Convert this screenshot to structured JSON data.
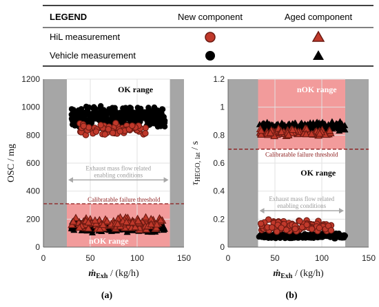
{
  "legend": {
    "title": "LEGEND",
    "col_new": "New component",
    "col_aged": "Aged component",
    "row_hil": "HiL measurement",
    "row_vehicle": "Vehicle measurement"
  },
  "colors": {
    "hil_fill": "#c0392b",
    "hil_edge": "#6b1a12",
    "vehicle_fill": "#000000",
    "nok_region": "#f08a8a",
    "gray_region": "#a6a6a6",
    "threshold": "#8b1a1a"
  },
  "chart_data": [
    {
      "id": "a",
      "type": "scatter",
      "panel_label": "(a)",
      "ylabel": "OSC / mg",
      "xlabel_main": "ṁ",
      "xlabel_sub": "Exh",
      "xlabel_unit": " / (kg/h)",
      "xlim": [
        0,
        150
      ],
      "ylim": [
        0,
        1200
      ],
      "xticks": [
        0,
        50,
        100,
        150
      ],
      "yticks": [
        0,
        200,
        400,
        600,
        800,
        1000,
        1200
      ],
      "gray_regions": [
        [
          0,
          25
        ],
        [
          135,
          150
        ]
      ],
      "nok_region": {
        "y": [
          0,
          310
        ],
        "label": "nOK range"
      },
      "ok_label": "OK range",
      "threshold": {
        "y": 310,
        "label": "Calibratable failure threshold"
      },
      "enabling": {
        "x": [
          25,
          135
        ],
        "y": 480,
        "label": [
          "Exhaust mass flow related",
          "enabling conditions"
        ]
      },
      "clusters": [
        {
          "series": "Vehicle new",
          "marker": "circle",
          "x": [
            30,
            130
          ],
          "y": [
            850,
            1010
          ],
          "count": 340
        },
        {
          "series": "HiL new",
          "marker": "circle",
          "x": [
            38,
            110
          ],
          "y": [
            790,
            890
          ],
          "count": 60
        },
        {
          "series": "Vehicle aged",
          "marker": "triangle",
          "x": [
            30,
            130
          ],
          "y": [
            100,
            190
          ],
          "count": 220
        },
        {
          "series": "HiL aged",
          "marker": "triangle",
          "x": [
            30,
            128
          ],
          "y": [
            120,
            220
          ],
          "count": 120
        }
      ]
    },
    {
      "id": "b",
      "type": "scatter",
      "panel_label": "(b)",
      "ylabel_main": "τ",
      "ylabel_sub": "HEGO, lat",
      "ylabel_unit": " / s",
      "xlabel_main": "ṁ",
      "xlabel_sub": "Exh",
      "xlabel_unit": " / (kg/h)",
      "xlim": [
        0,
        150
      ],
      "ylim": [
        0,
        1.2
      ],
      "xticks": [
        0,
        50,
        100,
        150
      ],
      "yticks": [
        0,
        0.2,
        0.4,
        0.6,
        0.8,
        1,
        1.2
      ],
      "ytick_labels": [
        "0",
        "0.2",
        "0.4",
        "0.6",
        "0.8",
        "1",
        "1.2"
      ],
      "gray_regions": [
        [
          0,
          32
        ],
        [
          125,
          150
        ]
      ],
      "nok_region": {
        "y": [
          0.7,
          1.2
        ],
        "label": "nOK range"
      },
      "ok_label": "OK range",
      "threshold": {
        "y": 0.7,
        "label": "Calibratable failure threshold"
      },
      "enabling": {
        "x": [
          32,
          125
        ],
        "y": 0.26,
        "label": [
          "Exhaust mass flow related",
          "enabling conditions"
        ]
      },
      "clusters": [
        {
          "series": "Vehicle aged",
          "marker": "triangle",
          "x": [
            33,
            125
          ],
          "y": [
            0.83,
            0.9
          ],
          "count": 180
        },
        {
          "series": "HiL aged",
          "marker": "triangle",
          "x": [
            33,
            110
          ],
          "y": [
            0.79,
            0.85
          ],
          "count": 80
        },
        {
          "series": "Vehicle new",
          "marker": "circle",
          "x": [
            33,
            125
          ],
          "y": [
            0.06,
            0.1
          ],
          "count": 260
        },
        {
          "series": "HiL new",
          "marker": "circle",
          "x": [
            35,
            110
          ],
          "y": [
            0.1,
            0.2
          ],
          "count": 110
        }
      ]
    }
  ]
}
